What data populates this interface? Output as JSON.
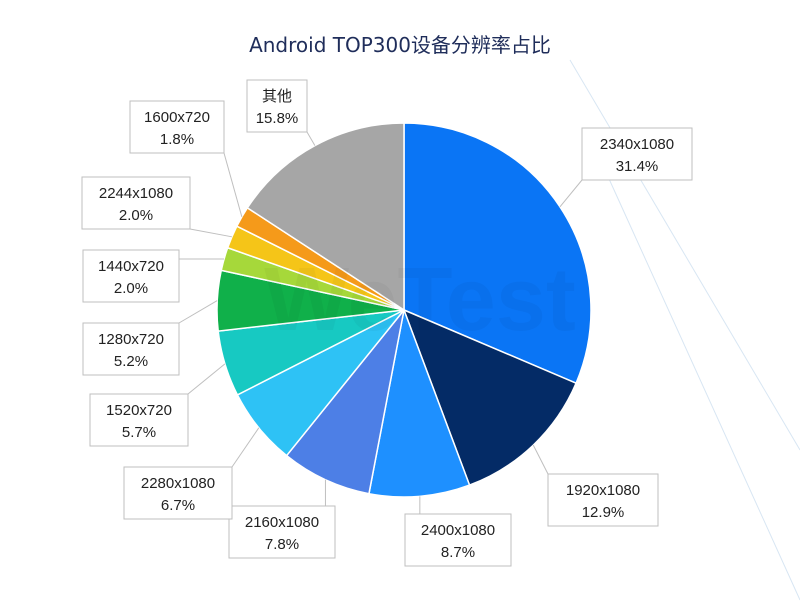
{
  "chart_data": {
    "type": "pie",
    "title": "Android TOP300设备分辨率占比",
    "slices": [
      {
        "label": "2340x1080",
        "value": 31.4,
        "value_text": "31.4%",
        "color": "#0a75f5"
      },
      {
        "label": "1920x1080",
        "value": 12.9,
        "value_text": "12.9%",
        "color": "#042b66"
      },
      {
        "label": "2400x1080",
        "value": 8.7,
        "value_text": "8.7%",
        "color": "#1e90ff"
      },
      {
        "label": "2160x1080",
        "value": 7.8,
        "value_text": "7.8%",
        "color": "#4d7fe6"
      },
      {
        "label": "2280x1080",
        "value": 6.7,
        "value_text": "6.7%",
        "color": "#2ec2f5"
      },
      {
        "label": "1520x720",
        "value": 5.7,
        "value_text": "5.7%",
        "color": "#17c9c2"
      },
      {
        "label": "1280x720",
        "value": 5.2,
        "value_text": "5.2%",
        "color": "#10b04a"
      },
      {
        "label": "1440x720",
        "value": 2.0,
        "value_text": "2.0%",
        "color": "#a6d83a"
      },
      {
        "label": "2244x1080",
        "value": 2.0,
        "value_text": "2.0%",
        "color": "#f5c518"
      },
      {
        "label": "1600x720",
        "value": 1.8,
        "value_text": "1.8%",
        "color": "#f59a1a"
      },
      {
        "label": "其他",
        "value": 15.8,
        "value_text": "15.8%",
        "color": "#a6a6a6"
      }
    ],
    "legend": "none"
  },
  "watermark": "WeTest"
}
